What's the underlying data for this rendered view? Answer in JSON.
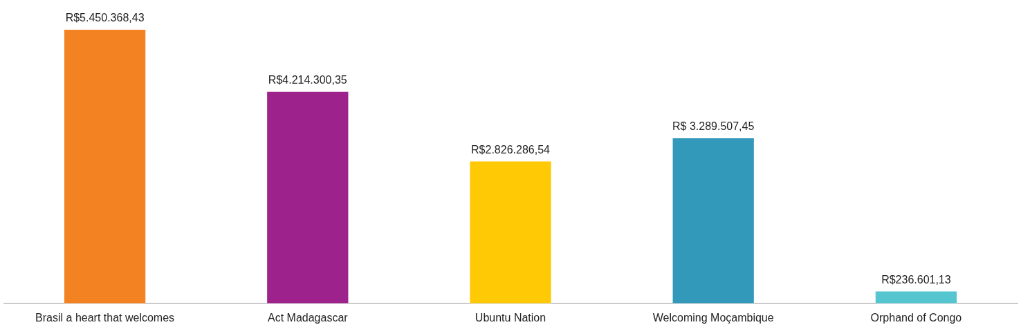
{
  "chart_data": {
    "type": "bar",
    "categories": [
      "Brasil a heart that welcomes",
      "Act Madagascar",
      "Ubuntu Nation",
      "Welcoming Moçambique",
      "Orphand of Congo"
    ],
    "values": [
      5450368.43,
      4214300.35,
      2826286.54,
      3289507.45,
      236601.13
    ],
    "value_labels": [
      "R$5.450.368,43",
      "R$4.214.300,35",
      "R$2.826.286,54",
      "R$ 3.289.507,45",
      "R$236.601,13"
    ],
    "colors": [
      "#f28222",
      "#9e228b",
      "#ffc906",
      "#3399bb",
      "#55c6d0"
    ],
    "grid": false,
    "legend": false
  }
}
